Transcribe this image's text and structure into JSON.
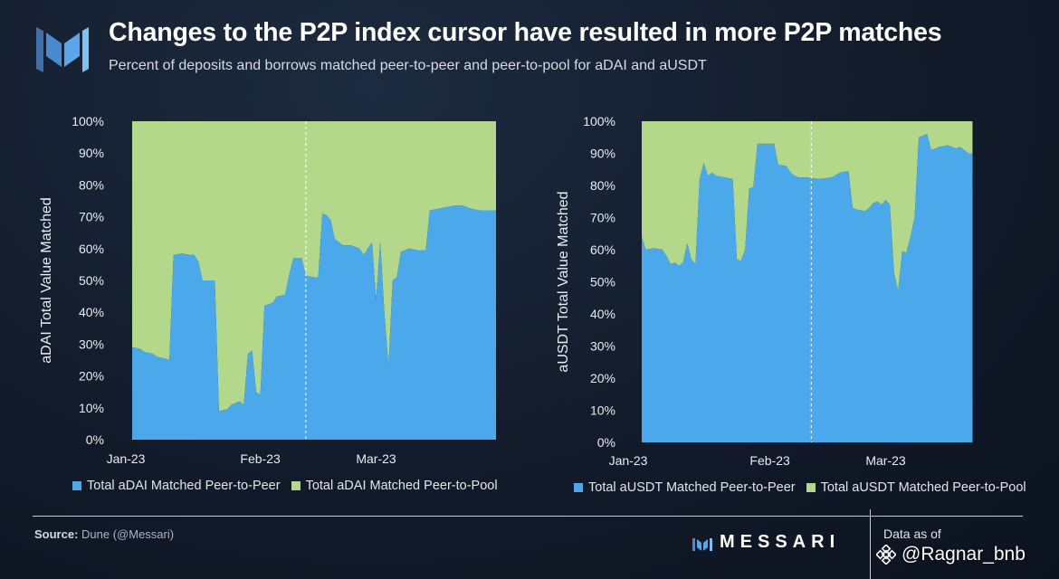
{
  "header": {
    "title": "Changes to the P2P index cursor have resulted in more P2P matches",
    "subtitle": "Percent of deposits and borrows matched peer-to-peer and peer-to-pool for aDAI and aUSDT"
  },
  "colors": {
    "p2p": "#4ba8ea",
    "pool": "#b4d88a"
  },
  "chart_data": [
    {
      "type": "area",
      "stacked": true,
      "ylabel": "aDAI Total Value Matched",
      "ylim": [
        0,
        100
      ],
      "yticks": [
        "0%",
        "10%",
        "20%",
        "30%",
        "40%",
        "50%",
        "60%",
        "70%",
        "80%",
        "90%",
        "100%"
      ],
      "xlim": [
        0,
        88
      ],
      "xticks": [
        {
          "label": "Jan-23",
          "x": 0
        },
        {
          "label": "Feb-23",
          "x": 31
        },
        {
          "label": "Mar-23",
          "x": 59
        }
      ],
      "divider_x": 42,
      "series": [
        {
          "name": "Total aDAI Matched Peer-to-Peer",
          "points": [
            [
              0,
              29
            ],
            [
              2,
              28.5
            ],
            [
              3,
              27.5
            ],
            [
              5,
              27
            ],
            [
              6,
              26
            ],
            [
              8,
              25.5
            ],
            [
              9,
              25
            ],
            [
              10,
              58
            ],
            [
              12,
              58.5
            ],
            [
              13,
              58.2
            ],
            [
              15,
              58
            ],
            [
              16,
              56
            ],
            [
              17,
              50
            ],
            [
              20,
              50
            ],
            [
              21,
              9
            ],
            [
              23,
              9.5
            ],
            [
              24,
              11
            ],
            [
              26,
              12
            ],
            [
              27,
              11
            ],
            [
              28,
              27
            ],
            [
              29,
              28
            ],
            [
              30,
              15
            ],
            [
              31,
              14
            ],
            [
              32,
              42
            ],
            [
              34,
              43
            ],
            [
              35,
              45
            ],
            [
              37,
              45.5
            ],
            [
              38,
              52
            ],
            [
              39,
              57
            ],
            [
              41,
              57
            ],
            [
              42,
              51.5
            ],
            [
              44,
              51
            ],
            [
              45,
              51
            ],
            [
              46,
              71
            ],
            [
              47,
              70.5
            ],
            [
              48,
              69
            ],
            [
              49,
              63
            ],
            [
              51,
              61
            ],
            [
              53,
              61
            ],
            [
              55,
              60
            ],
            [
              56,
              58
            ],
            [
              57,
              60
            ],
            [
              58,
              62
            ],
            [
              59,
              44
            ],
            [
              60,
              62
            ],
            [
              61,
              40
            ],
            [
              62,
              23
            ],
            [
              63,
              50
            ],
            [
              64,
              51
            ],
            [
              65,
              59
            ],
            [
              66,
              59.5
            ],
            [
              67,
              60
            ],
            [
              69,
              59.5
            ],
            [
              71,
              59.5
            ],
            [
              72,
              72
            ],
            [
              74,
              72.5
            ],
            [
              78,
              73.5
            ],
            [
              80,
              73.5
            ],
            [
              82,
              72.5
            ],
            [
              84,
              72
            ],
            [
              88,
              72
            ]
          ]
        },
        {
          "name": "Total aDAI Matched Peer-to-Pool",
          "fill_to": 100
        }
      ],
      "legend": [
        "Total aDAI Matched Peer-to-Peer",
        "Total aDAI Matched Peer-to-Pool"
      ]
    },
    {
      "type": "area",
      "stacked": true,
      "ylabel": "aUSDT Total Value Matched",
      "ylim": [
        0,
        100
      ],
      "yticks": [
        "0%",
        "10%",
        "20%",
        "30%",
        "40%",
        "50%",
        "60%",
        "70%",
        "80%",
        "90%",
        "100%"
      ],
      "xlim": [
        0,
        88
      ],
      "xticks": [
        {
          "label": "Jan-23",
          "x": 0
        },
        {
          "label": "Feb-23",
          "x": 31
        },
        {
          "label": "Mar-23",
          "x": 59
        }
      ],
      "divider_x": 41,
      "series": [
        {
          "name": "Total aUSDT Matched Peer-to-Peer",
          "points": [
            [
              0,
              64
            ],
            [
              1,
              60
            ],
            [
              3,
              60.5
            ],
            [
              5,
              60
            ],
            [
              6,
              58
            ],
            [
              7,
              55.5
            ],
            [
              8,
              56
            ],
            [
              9,
              55
            ],
            [
              10,
              56
            ],
            [
              11,
              62
            ],
            [
              12,
              57
            ],
            [
              13,
              55.5
            ],
            [
              14,
              82
            ],
            [
              15,
              87
            ],
            [
              16,
              83
            ],
            [
              17,
              84
            ],
            [
              18,
              83
            ],
            [
              20,
              82.5
            ],
            [
              22,
              82
            ],
            [
              23,
              57
            ],
            [
              24,
              56.5
            ],
            [
              25,
              60
            ],
            [
              26,
              79
            ],
            [
              27,
              79.5
            ],
            [
              28,
              93
            ],
            [
              29,
              93
            ],
            [
              31,
              93
            ],
            [
              32,
              93
            ],
            [
              33,
              86.5
            ],
            [
              35,
              86
            ],
            [
              36,
              84
            ],
            [
              37,
              83
            ],
            [
              38,
              82.5
            ],
            [
              40,
              82.5
            ],
            [
              43,
              82
            ],
            [
              46,
              82.5
            ],
            [
              48,
              84
            ],
            [
              50,
              84.5
            ],
            [
              51,
              73
            ],
            [
              52,
              72.5
            ],
            [
              54,
              72
            ],
            [
              55,
              73
            ],
            [
              56,
              74.5
            ],
            [
              57,
              75
            ],
            [
              58,
              74
            ],
            [
              59,
              75.5
            ],
            [
              60,
              74
            ],
            [
              61,
              53
            ],
            [
              62,
              47
            ],
            [
              63,
              59.5
            ],
            [
              64,
              59
            ],
            [
              65,
              64
            ],
            [
              66,
              70
            ],
            [
              67,
              95
            ],
            [
              69,
              96
            ],
            [
              70,
              91
            ],
            [
              72,
              92
            ],
            [
              74,
              92.5
            ],
            [
              76,
              91.5
            ],
            [
              77,
              92
            ],
            [
              78,
              91
            ],
            [
              79,
              90
            ],
            [
              80,
              90
            ]
          ]
        },
        {
          "name": "Total aUSDT Matched Peer-to-Pool",
          "fill_to": 100
        }
      ],
      "legend": [
        "Total aUSDT Matched Peer-to-Peer",
        "Total aUSDT Matched Peer-to-Pool"
      ]
    }
  ],
  "footer": {
    "source_label": "Source:",
    "source_value": " Dune (@Messari)",
    "brand": "MESSARI",
    "as_of": "Data as of",
    "watermark": "@Ragnar_bnb"
  }
}
